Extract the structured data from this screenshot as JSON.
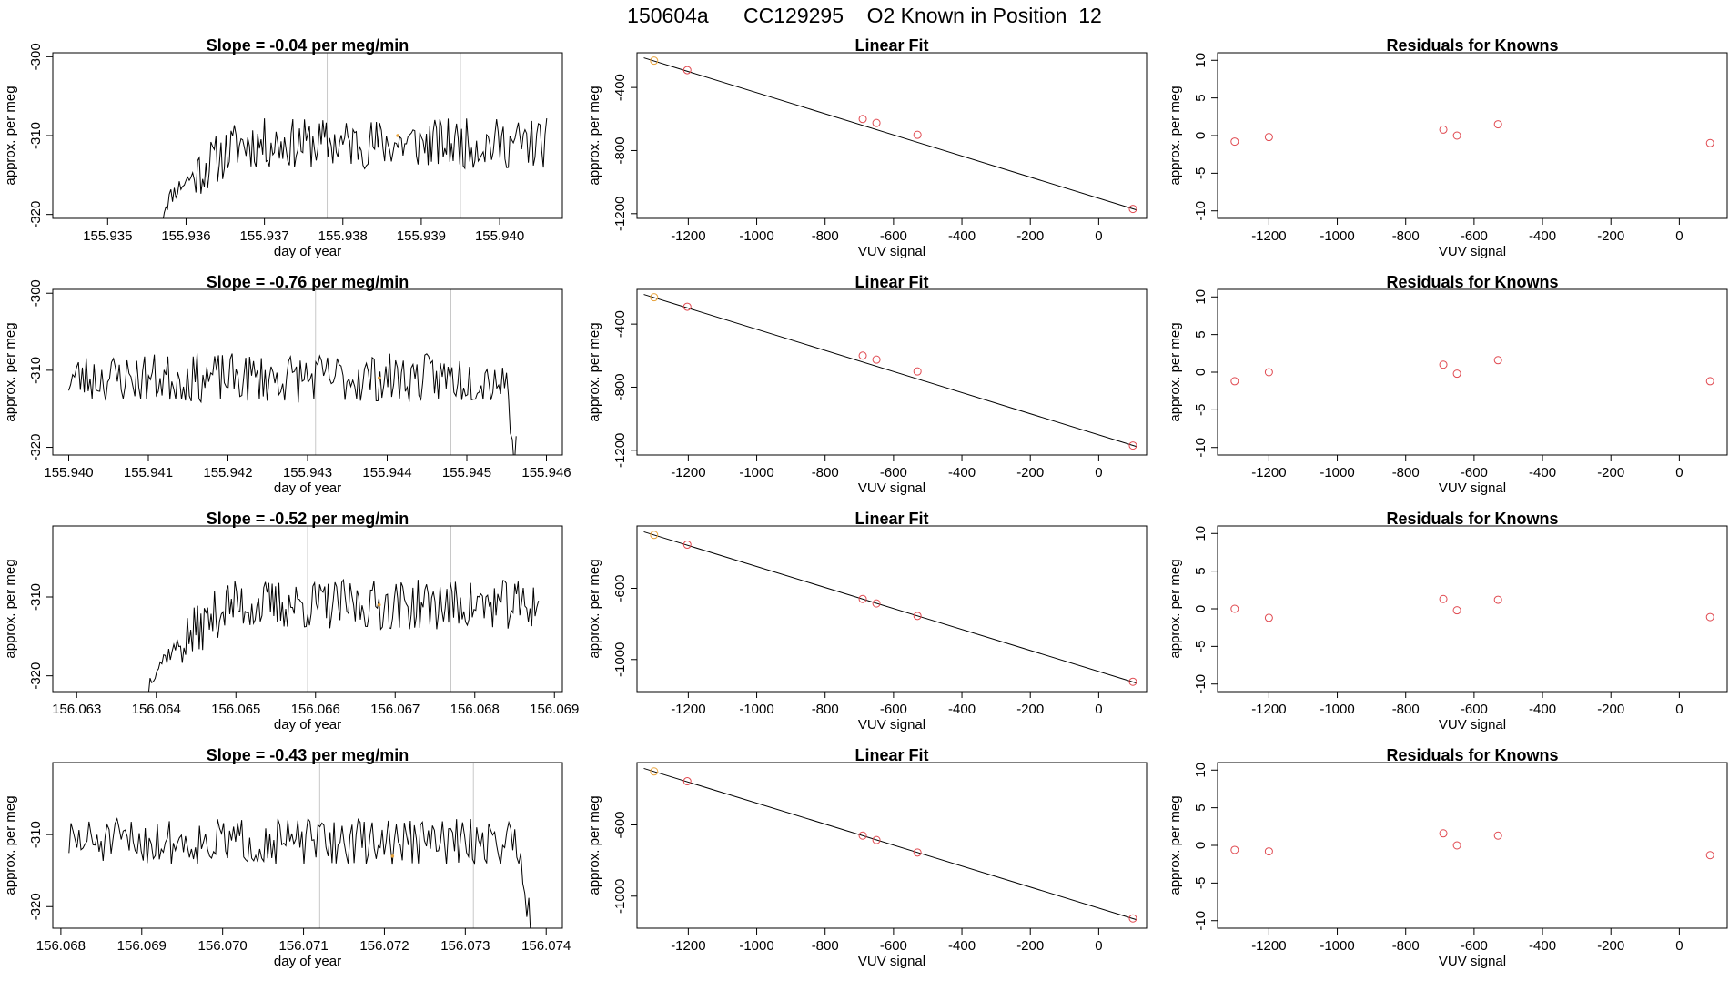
{
  "title": "150604a      CC129295    O2 Known in Position  12",
  "colors": {
    "line": "#000000",
    "marker": "#e0484f",
    "highlight": "#e8a33c",
    "vline": "#c8c8c8",
    "frame": "#000000"
  },
  "chart_data": [
    {
      "type": "line",
      "row": 1,
      "col": 1,
      "title": "Slope =  -0.04  per meg/min",
      "xlabel": "day of year",
      "ylabel": "approx. per meg",
      "xlim": [
        155.9343,
        155.9408
      ],
      "ylim": [
        -320.5,
        -299.5
      ],
      "xticks": [
        155.935,
        155.936,
        155.937,
        155.938,
        155.939,
        155.94
      ],
      "xtick_decimals": 3,
      "yticks": [
        -320,
        -310,
        -300
      ],
      "vlines": [
        155.9378,
        155.9395
      ],
      "highlight_point": [
        155.9387,
        -310
      ],
      "trace_start": [
        155.9357,
        -320.5
      ],
      "trace_drop": [
        155.9361,
        -315
      ],
      "trace_drop_to": null,
      "trace_end": [
        155.9406,
        -309.5
      ],
      "seed": 11
    },
    {
      "type": "scatter",
      "row": 1,
      "col": 2,
      "title": "Linear Fit",
      "xlabel": "VUV signal",
      "ylabel": "approx. per meg",
      "xlim": [
        -1350,
        140
      ],
      "ylim": [
        -1230,
        -180
      ],
      "xticks": [
        -1200,
        -1000,
        -800,
        -600,
        -400,
        -200,
        0
      ],
      "yticks": [
        -1200,
        -800,
        -400
      ],
      "points": [
        [
          -1300,
          -230
        ],
        [
          -1203,
          -290
        ],
        [
          -690,
          -600
        ],
        [
          -650,
          -625
        ],
        [
          -530,
          -700
        ],
        [
          100,
          -1170
        ]
      ],
      "highlight_index": 0,
      "fit": [
        [
          -1330,
          -212
        ],
        [
          110,
          -1176
        ]
      ]
    },
    {
      "type": "scatter",
      "row": 1,
      "col": 3,
      "title": "Residuals for Knowns",
      "xlabel": "VUV signal",
      "ylabel": "approx. per meg",
      "xlim": [
        -1350,
        140
      ],
      "ylim": [
        -11,
        11
      ],
      "xticks": [
        -1200,
        -1000,
        -800,
        -600,
        -400,
        -200,
        0
      ],
      "yticks": [
        -10,
        -5,
        0,
        5,
        10
      ],
      "points": [
        [
          -1300,
          -0.8
        ],
        [
          -1200,
          -0.2
        ],
        [
          -690,
          0.8
        ],
        [
          -650,
          0
        ],
        [
          -530,
          1.5
        ],
        [
          90,
          -1
        ]
      ]
    },
    {
      "type": "line",
      "row": 2,
      "col": 1,
      "title": "Slope =  -0.76  per meg/min",
      "xlabel": "day of year",
      "ylabel": "approx. per meg",
      "xlim": [
        155.9398,
        155.9462
      ],
      "ylim": [
        -321,
        -299.5
      ],
      "xticks": [
        155.94,
        155.941,
        155.942,
        155.943,
        155.944,
        155.945,
        155.946
      ],
      "xtick_decimals": 3,
      "yticks": [
        -320,
        -310,
        -300
      ],
      "vlines": [
        155.9431,
        155.9448
      ],
      "highlight_point": [
        155.9439,
        -311
      ],
      "trace_start": [
        155.94,
        -311
      ],
      "trace_drop": [
        155.9455,
        -314
      ],
      "trace_drop_to": -321,
      "trace_end": [
        155.94562,
        -321
      ],
      "seed": 23
    },
    {
      "type": "scatter",
      "row": 2,
      "col": 2,
      "title": "Linear Fit",
      "xlabel": "VUV signal",
      "ylabel": "approx. per meg",
      "xlim": [
        -1350,
        140
      ],
      "ylim": [
        -1230,
        -180
      ],
      "xticks": [
        -1200,
        -1000,
        -800,
        -600,
        -400,
        -200,
        0
      ],
      "yticks": [
        -1200,
        -800,
        -400
      ],
      "points": [
        [
          -1300,
          -230
        ],
        [
          -1203,
          -290
        ],
        [
          -690,
          -600
        ],
        [
          -650,
          -625
        ],
        [
          -530,
          -700
        ],
        [
          100,
          -1170
        ]
      ],
      "highlight_index": 0,
      "fit": [
        [
          -1330,
          -212
        ],
        [
          110,
          -1176
        ]
      ]
    },
    {
      "type": "scatter",
      "row": 2,
      "col": 3,
      "title": "Residuals for Knowns",
      "xlabel": "VUV signal",
      "ylabel": "approx. per meg",
      "xlim": [
        -1350,
        140
      ],
      "ylim": [
        -11,
        11
      ],
      "xticks": [
        -1200,
        -1000,
        -800,
        -600,
        -400,
        -200,
        0
      ],
      "yticks": [
        -10,
        -5,
        0,
        5,
        10
      ],
      "points": [
        [
          -1300,
          -1.2
        ],
        [
          -1200,
          0
        ],
        [
          -690,
          1
        ],
        [
          -650,
          -0.2
        ],
        [
          -530,
          1.6
        ],
        [
          90,
          -1.2
        ]
      ]
    },
    {
      "type": "line",
      "row": 3,
      "col": 1,
      "title": "Slope =  -0.52  per meg/min",
      "xlabel": "day of year",
      "ylabel": "approx. per meg",
      "xlim": [
        156.0627,
        156.0691
      ],
      "ylim": [
        -322,
        -301
      ],
      "xticks": [
        156.063,
        156.064,
        156.065,
        156.066,
        156.067,
        156.068,
        156.069
      ],
      "xtick_decimals": 3,
      "yticks": [
        -320,
        -310
      ],
      "vlines": [
        156.0659,
        156.0677
      ],
      "highlight_point": [
        156.0668,
        -311
      ],
      "trace_start": [
        156.0639,
        -322
      ],
      "trace_drop": [
        156.0643,
        -316
      ],
      "trace_drop_to": null,
      "trace_end": [
        156.0688,
        -311
      ],
      "seed": 37
    },
    {
      "type": "scatter",
      "row": 3,
      "col": 2,
      "title": "Linear Fit",
      "xlabel": "VUV signal",
      "ylabel": "approx. per meg",
      "xlim": [
        -1350,
        140
      ],
      "ylim": [
        -1180,
        -250
      ],
      "xticks": [
        -1200,
        -1000,
        -800,
        -600,
        -400,
        -200,
        0
      ],
      "yticks": [
        -1000,
        -600
      ],
      "points": [
        [
          -1300,
          -300
        ],
        [
          -1203,
          -355
        ],
        [
          -690,
          -660
        ],
        [
          -650,
          -685
        ],
        [
          -530,
          -755
        ],
        [
          100,
          -1125
        ]
      ],
      "highlight_index": 0,
      "fit": [
        [
          -1330,
          -283
        ],
        [
          110,
          -1132
        ]
      ]
    },
    {
      "type": "scatter",
      "row": 3,
      "col": 3,
      "title": "Residuals for Knowns",
      "xlabel": "VUV signal",
      "ylabel": "approx. per meg",
      "xlim": [
        -1350,
        140
      ],
      "ylim": [
        -11,
        11
      ],
      "xticks": [
        -1200,
        -1000,
        -800,
        -600,
        -400,
        -200,
        0
      ],
      "yticks": [
        -10,
        -5,
        0,
        5,
        10
      ],
      "points": [
        [
          -1300,
          0
        ],
        [
          -1200,
          -1.2
        ],
        [
          -690,
          1.3
        ],
        [
          -650,
          -0.2
        ],
        [
          -530,
          1.2
        ],
        [
          90,
          -1.1
        ]
      ]
    },
    {
      "type": "line",
      "row": 4,
      "col": 1,
      "title": "Slope =  -0.43  per meg/min",
      "xlabel": "day of year",
      "ylabel": "approx. per meg",
      "xlim": [
        156.0679,
        156.0742
      ],
      "ylim": [
        -323,
        -300
      ],
      "xticks": [
        156.068,
        156.069,
        156.07,
        156.071,
        156.072,
        156.073,
        156.074
      ],
      "xtick_decimals": 3,
      "yticks": [
        -320,
        -310
      ],
      "vlines": [
        156.0712,
        156.0731
      ],
      "highlight_point": [
        156.0721,
        -313
      ],
      "trace_start": [
        156.0681,
        -312
      ],
      "trace_drop": [
        156.0737,
        -315
      ],
      "trace_drop_to": -323,
      "trace_end": [
        156.07381,
        -323
      ],
      "seed": 51
    },
    {
      "type": "scatter",
      "row": 4,
      "col": 2,
      "title": "Linear Fit",
      "xlabel": "VUV signal",
      "ylabel": "approx. per meg",
      "xlim": [
        -1350,
        140
      ],
      "ylim": [
        -1180,
        -250
      ],
      "xticks": [
        -1200,
        -1000,
        -800,
        -600,
        -400,
        -200,
        0
      ],
      "yticks": [
        -1000,
        -600
      ],
      "points": [
        [
          -1300,
          -300
        ],
        [
          -1203,
          -355
        ],
        [
          -690,
          -660
        ],
        [
          -650,
          -685
        ],
        [
          -530,
          -755
        ],
        [
          100,
          -1125
        ]
      ],
      "highlight_index": 0,
      "fit": [
        [
          -1330,
          -283
        ],
        [
          110,
          -1132
        ]
      ]
    },
    {
      "type": "scatter",
      "row": 4,
      "col": 3,
      "title": "Residuals for Knowns",
      "xlabel": "VUV signal",
      "ylabel": "approx. per meg",
      "xlim": [
        -1350,
        140
      ],
      "ylim": [
        -11,
        11
      ],
      "xticks": [
        -1200,
        -1000,
        -800,
        -600,
        -400,
        -200,
        0
      ],
      "yticks": [
        -10,
        -5,
        0,
        5,
        10
      ],
      "points": [
        [
          -1300,
          -0.6
        ],
        [
          -1200,
          -0.8
        ],
        [
          -690,
          1.6
        ],
        [
          -650,
          0
        ],
        [
          -530,
          1.3
        ],
        [
          90,
          -1.3
        ]
      ]
    }
  ]
}
